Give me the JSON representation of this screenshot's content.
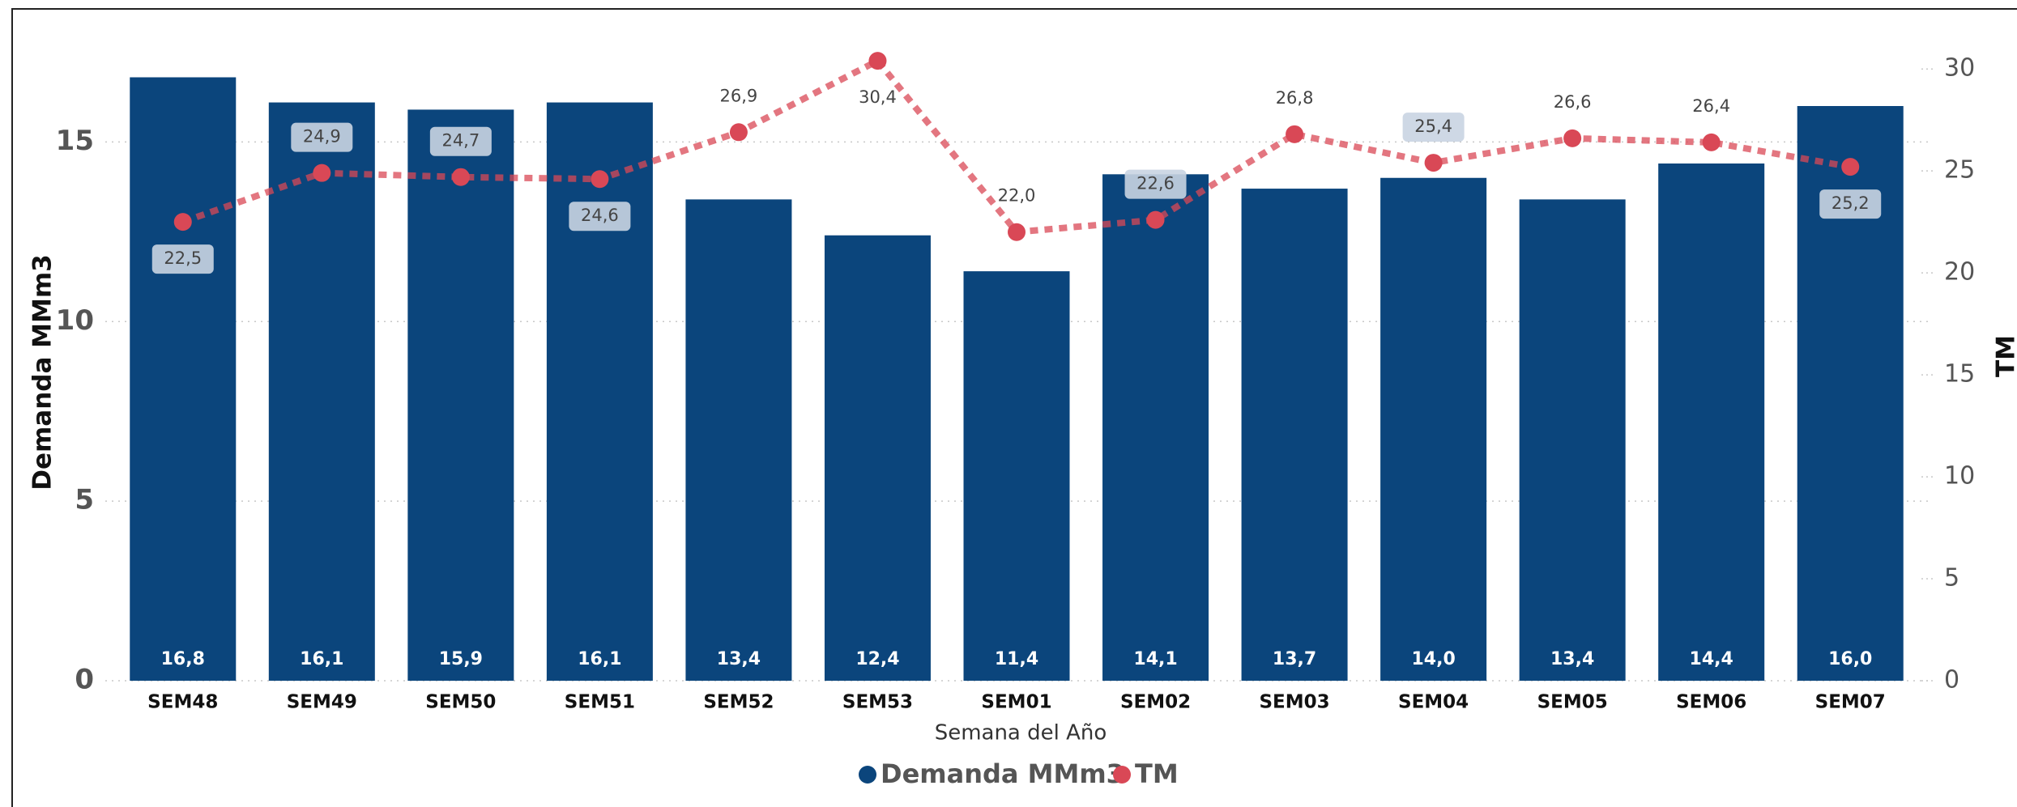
{
  "colors": {
    "bar": "#0B457C",
    "line": "#D94856",
    "grid": "#C8C8C8",
    "label_box": "#C9D4E2"
  },
  "chart_data": {
    "type": "bar",
    "categories": [
      "SEM48",
      "SEM49",
      "SEM50",
      "SEM51",
      "SEM52",
      "SEM53",
      "SEM01",
      "SEM02",
      "SEM03",
      "SEM04",
      "SEM05",
      "SEM06",
      "SEM07"
    ],
    "series": [
      {
        "name": "Demanda MMm3",
        "type": "bar",
        "axis": "left",
        "values": [
          16.8,
          16.1,
          15.9,
          16.1,
          13.4,
          12.4,
          11.4,
          14.1,
          13.7,
          14.0,
          13.4,
          14.4,
          16.0
        ],
        "labels": [
          "16,8",
          "16,1",
          "15,9",
          "16,1",
          "13,4",
          "12,4",
          "11,4",
          "14,1",
          "13,7",
          "14,0",
          "13,4",
          "14,4",
          "16,0"
        ]
      },
      {
        "name": "TM",
        "type": "line",
        "axis": "right",
        "style": "dotted",
        "values": [
          22.5,
          24.9,
          24.7,
          24.6,
          26.9,
          30.4,
          22.0,
          22.6,
          26.8,
          25.4,
          26.6,
          26.4,
          25.2
        ],
        "labels": [
          "22,5",
          "24,9",
          "24,7",
          "24,6",
          "26,9",
          "30,4",
          "22,0",
          "22,6",
          "26,8",
          "25,4",
          "26,6",
          "26,4",
          "25,2"
        ],
        "label_boxed": [
          true,
          true,
          true,
          true,
          false,
          false,
          false,
          true,
          false,
          true,
          false,
          false,
          true
        ],
        "label_below": [
          true,
          false,
          false,
          true,
          false,
          true,
          false,
          false,
          false,
          false,
          false,
          false,
          true
        ]
      }
    ],
    "xlabel": "Semana del Año",
    "ylabel": "Demanda MMm3",
    "y2label": "TM",
    "ylim": [
      0,
      17.6
    ],
    "yticks": [
      "0",
      "5",
      "10",
      "15"
    ],
    "y2lim": [
      0,
      31
    ],
    "y2ticks": [
      "0",
      "5",
      "10",
      "15",
      "20",
      "25",
      "30"
    ],
    "grid": true,
    "legend": {
      "position": "bottom-center",
      "items": [
        "Demanda MMm3",
        "TM"
      ]
    }
  }
}
